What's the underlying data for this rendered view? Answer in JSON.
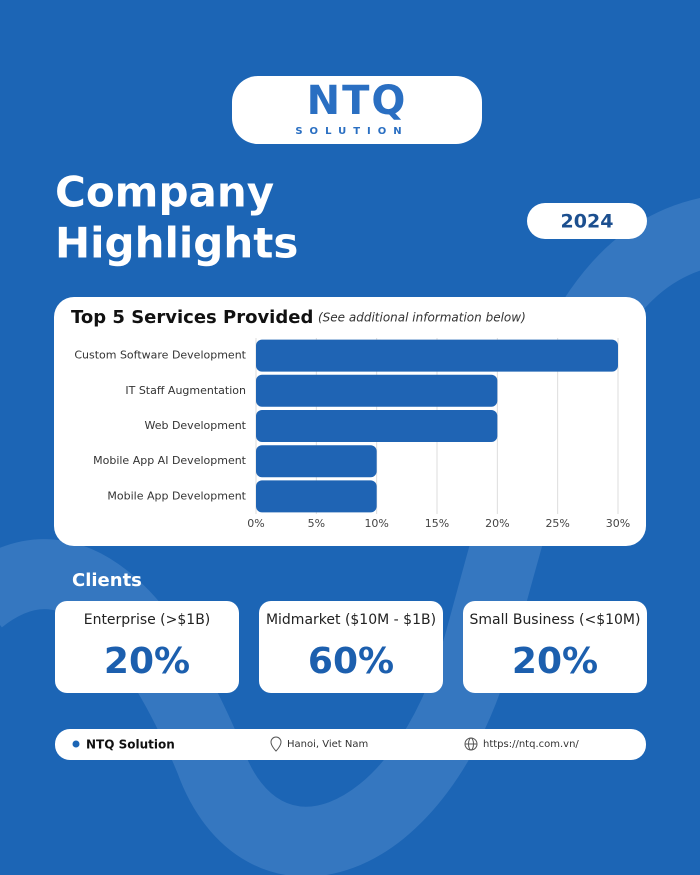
{
  "header": {
    "logo": "NTQ",
    "logo_sub": "SOLUTION"
  },
  "title": {
    "line1": "Company",
    "line2": "Highlights"
  },
  "year": "2024",
  "chart_data": {
    "type": "bar",
    "orientation": "horizontal",
    "title": "Top 5 Services Provided",
    "subtitle": "(See additional information below)",
    "categories": [
      "Custom Software Development",
      "IT Staff Augmentation",
      "Web Development",
      "Mobile App AI Development",
      "Mobile App Development"
    ],
    "values": [
      30,
      20,
      20,
      10,
      10
    ],
    "color": "#1f64b4",
    "xlim": [
      0,
      30
    ],
    "xticks": [
      {
        "value": 0,
        "label": "0%"
      },
      {
        "value": 5,
        "label": "5%"
      },
      {
        "value": 10,
        "label": "10%"
      },
      {
        "value": 15,
        "label": "15%"
      },
      {
        "value": 20,
        "label": "20%"
      },
      {
        "value": 25,
        "label": "25%"
      },
      {
        "value": 30,
        "label": "30%"
      }
    ],
    "grid": true
  },
  "clients": {
    "heading": "Clients",
    "items": [
      {
        "label": "Enterprise (>$1B)",
        "value": "20%"
      },
      {
        "label": "Midmarket ($10M - $1B)",
        "value": "60%"
      },
      {
        "label": "Small Business (<$10M)",
        "value": "20%"
      }
    ]
  },
  "footer": {
    "company": "NTQ Solution",
    "location": "Hanoi, Viet Nam",
    "website": "https://ntq.com.vn/"
  }
}
